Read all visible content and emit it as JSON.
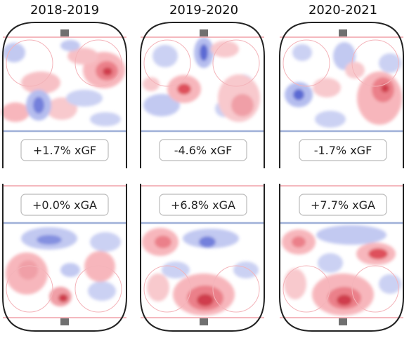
{
  "chart_data": {
    "type": "heatmap",
    "seasons": [
      "2018-2019",
      "2019-2020",
      "2020-2021"
    ],
    "offense": [
      {
        "season": "2018-2019",
        "label": "+1.7% xGF",
        "value_pct": 1.7
      },
      {
        "season": "2019-2020",
        "label": "-4.6% xGF",
        "value_pct": -4.6
      },
      {
        "season": "2020-2021",
        "label": "-1.7% xGF",
        "value_pct": -1.7
      }
    ],
    "defense": [
      {
        "season": "2018-2019",
        "label": "+0.0% xGA",
        "value_pct": 0.0
      },
      {
        "season": "2019-2020",
        "label": "+6.8% xGA",
        "value_pct": 6.8
      },
      {
        "season": "2020-2021",
        "label": "+7.7% xGA",
        "value_pct": 7.7
      }
    ],
    "colors": {
      "above_average": "#e0303a",
      "below_average": "#2b3fc8",
      "rink_line": "#222222",
      "goal_line": "#f0a0a8",
      "blue_line": "#9fb0d8",
      "net": "#707070"
    }
  }
}
